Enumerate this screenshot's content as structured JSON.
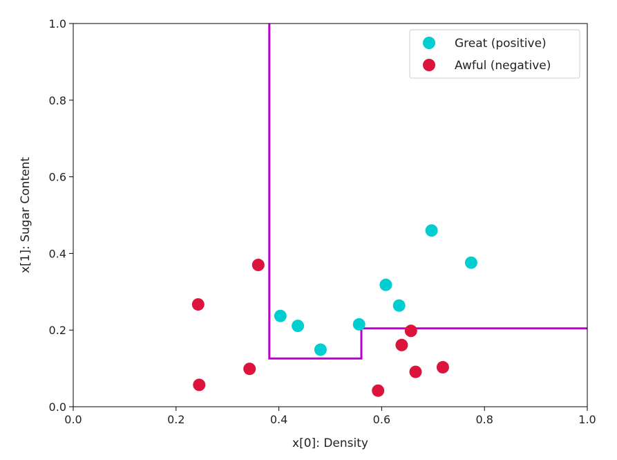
{
  "chart_data": {
    "type": "scatter",
    "title": "",
    "xlabel": "x[0]: Density",
    "ylabel": "x[1]: Sugar Content",
    "xlim": [
      0.0,
      1.0
    ],
    "ylim": [
      0.0,
      1.0
    ],
    "xticks": [
      "0.0",
      "0.2",
      "0.4",
      "0.6",
      "0.8",
      "1.0"
    ],
    "yticks": [
      "0.0",
      "0.2",
      "0.4",
      "0.6",
      "0.8",
      "1.0"
    ],
    "grid": false,
    "legend": "top-right",
    "series": [
      {
        "name": "Great (positive)",
        "color": "#00CED1",
        "points": [
          [
            0.403,
            0.237
          ],
          [
            0.437,
            0.211
          ],
          [
            0.481,
            0.149
          ],
          [
            0.556,
            0.215
          ],
          [
            0.608,
            0.318
          ],
          [
            0.634,
            0.264
          ],
          [
            0.697,
            0.46
          ],
          [
            0.774,
            0.376
          ]
        ]
      },
      {
        "name": "Awful (negative)",
        "color": "#DC143C",
        "points": [
          [
            0.243,
            0.267
          ],
          [
            0.245,
            0.057
          ],
          [
            0.343,
            0.099
          ],
          [
            0.36,
            0.37
          ],
          [
            0.593,
            0.042
          ],
          [
            0.639,
            0.161
          ],
          [
            0.657,
            0.198
          ],
          [
            0.666,
            0.091
          ],
          [
            0.719,
            0.103
          ]
        ]
      }
    ],
    "decision_boundary": {
      "color": "#BB00CC",
      "points": [
        [
          0.3815,
          1.0
        ],
        [
          0.3815,
          0.126
        ],
        [
          0.5605,
          0.126
        ],
        [
          0.5605,
          0.2045
        ],
        [
          1.0,
          0.2045
        ]
      ]
    }
  }
}
